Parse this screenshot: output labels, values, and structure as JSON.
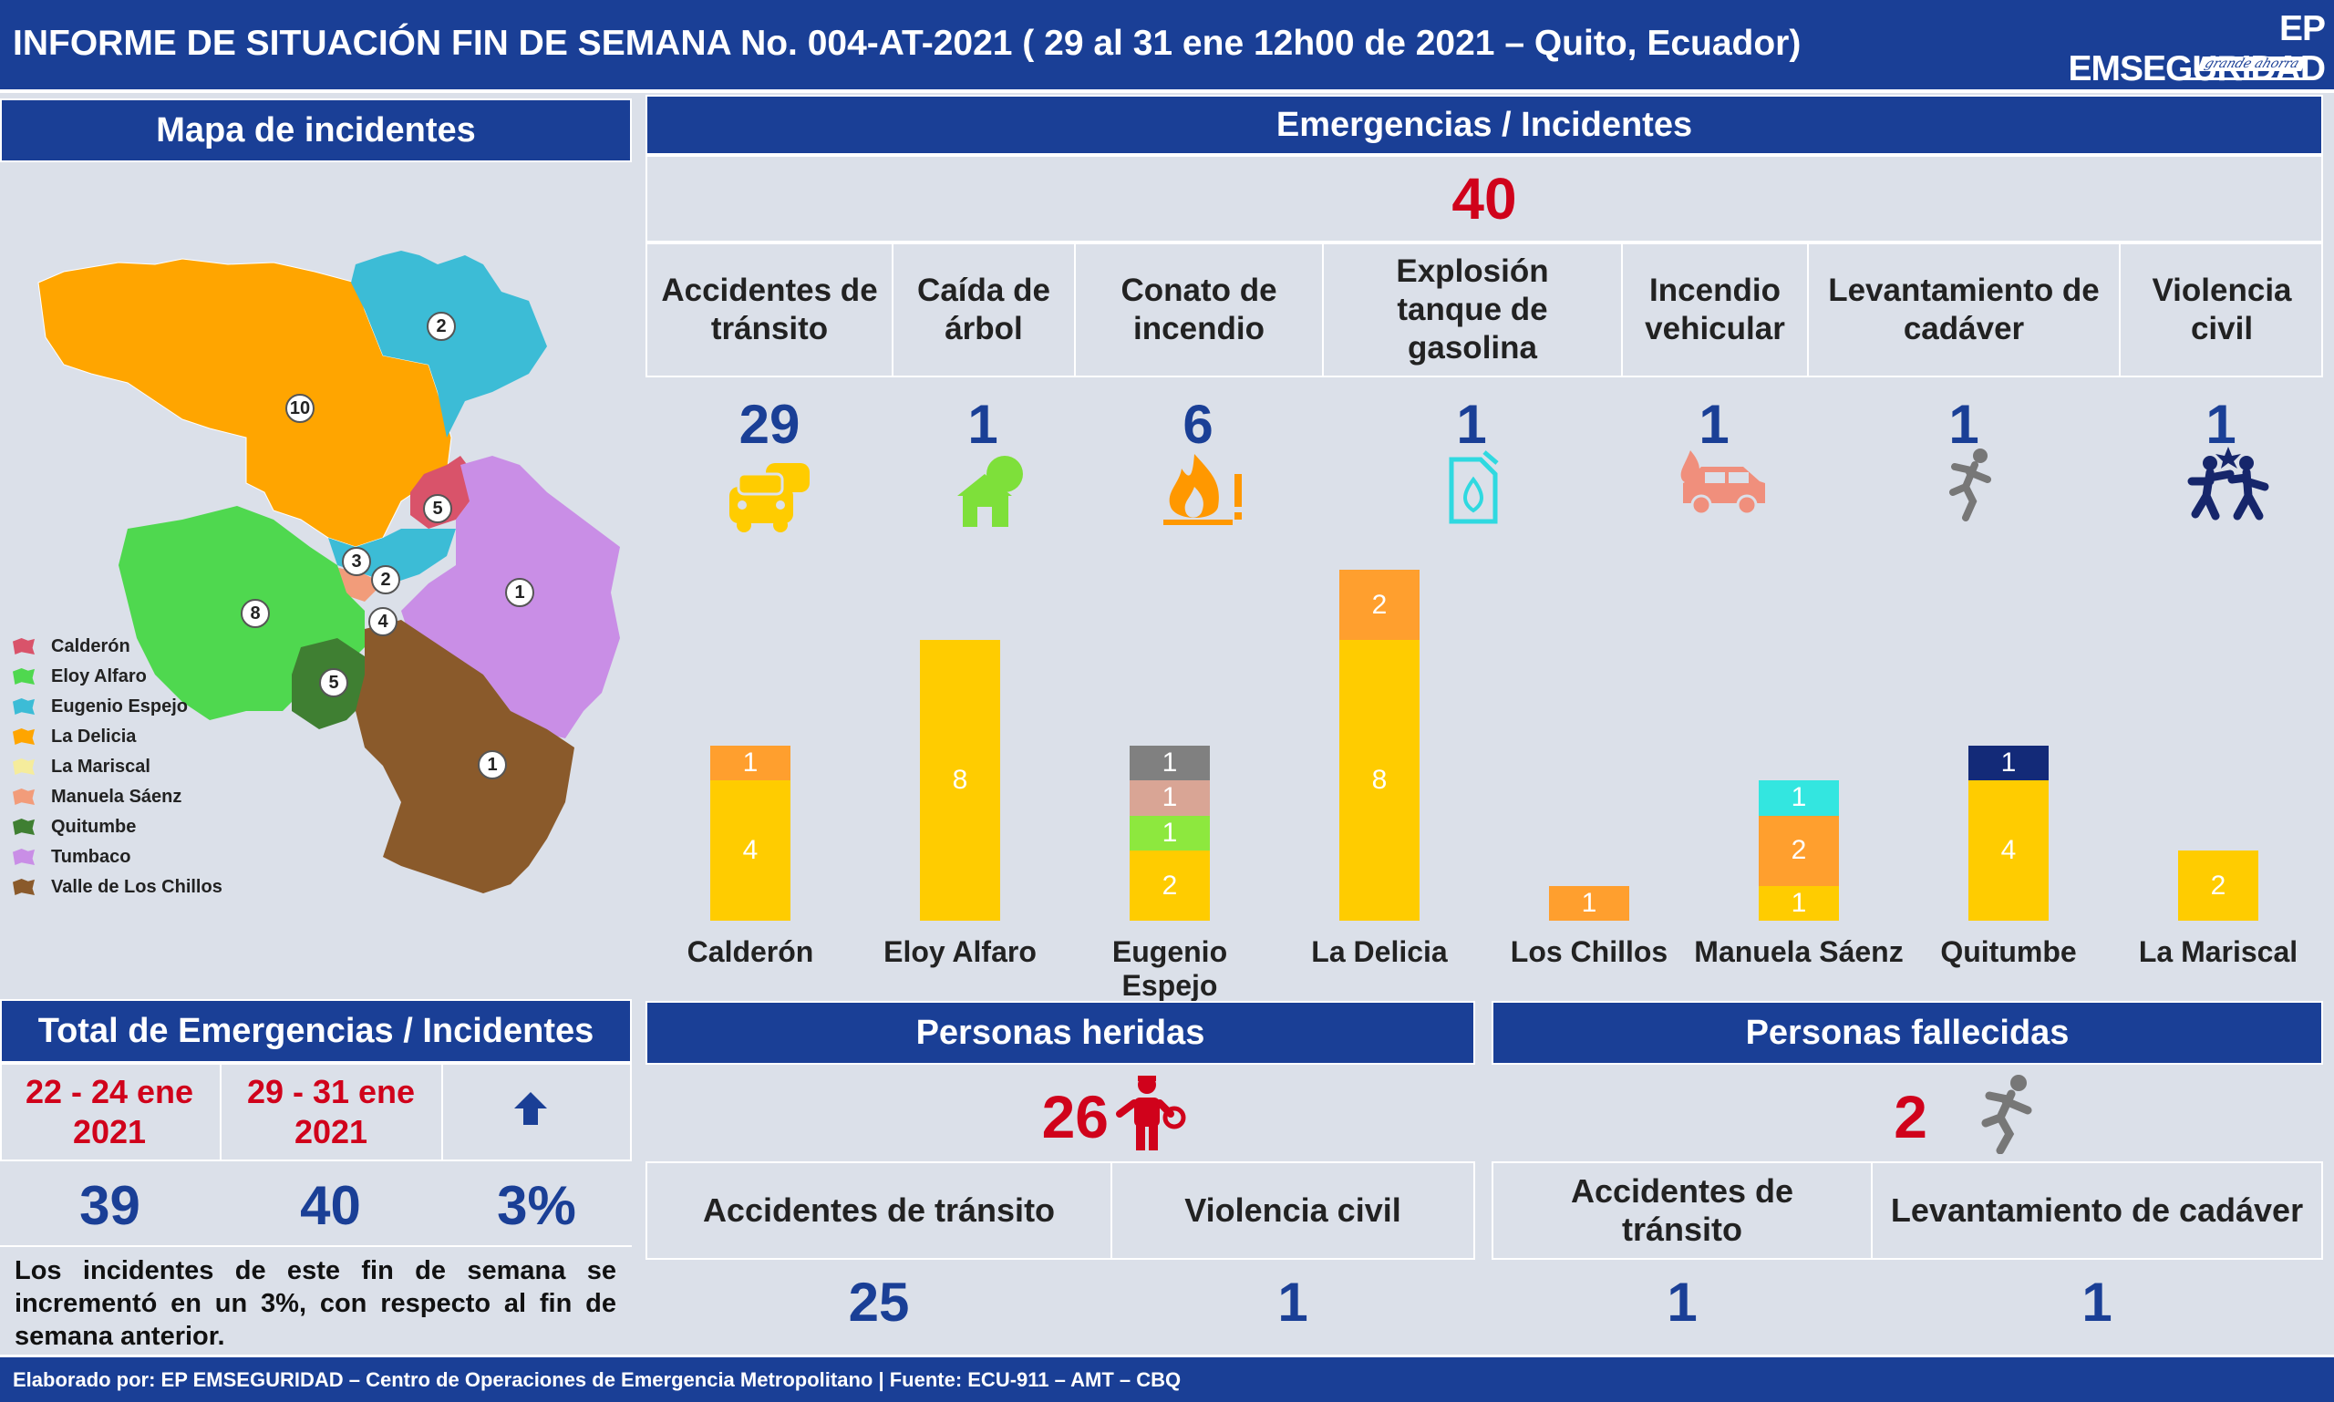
{
  "header": {
    "title": "INFORME DE SITUACIÓN FIN DE SEMANA No. 004-AT-2021 ( 29 al 31 ene 12h00 de 2021 – Quito, Ecuador)",
    "logo": "EP EMSEGURIDAD",
    "logo_signature": "grande ahorra"
  },
  "map_panel": {
    "title": "Mapa de incidentes",
    "badges": [
      "2",
      "10",
      "5",
      "3",
      "2",
      "1",
      "8",
      "4",
      "5",
      "1"
    ],
    "legend": [
      {
        "label": "Calderón",
        "color": "#d9536a"
      },
      {
        "label": "Eloy Alfaro",
        "color": "#4fd84f"
      },
      {
        "label": "Eugenio Espejo",
        "color": "#3cbcd6"
      },
      {
        "label": "La Delicia",
        "color": "#ffa500"
      },
      {
        "label": "La Mariscal",
        "color": "#f5ec9c"
      },
      {
        "label": "Manuela Sáenz",
        "color": "#f29c7a"
      },
      {
        "label": "Quitumbe",
        "color": "#3f7f32"
      },
      {
        "label": "Tumbaco",
        "color": "#c98ee6"
      },
      {
        "label": "Valle de Los Chillos",
        "color": "#8a5a2b"
      }
    ]
  },
  "emergencies": {
    "title": "Emergencias / Incidentes",
    "total": "40",
    "categories": [
      {
        "label": "Accidentes de tránsito",
        "count": "29",
        "icon": "car-crash-icon",
        "color": "#ffcc00"
      },
      {
        "label": "Caída de árbol",
        "count": "1",
        "icon": "fallen-tree-icon",
        "color": "#7ee03a"
      },
      {
        "label": "Conato de incendio",
        "count": "6",
        "icon": "fire-warning-icon",
        "color": "#ff9800"
      },
      {
        "label": "Explosión tanque de gasolina",
        "count": "1",
        "icon": "fuel-can-icon",
        "color": "#2fd9e0"
      },
      {
        "label": "Incendio vehicular",
        "count": "1",
        "icon": "car-fire-icon",
        "color": "#f08f7c"
      },
      {
        "label": "Levantamiento de cadáver",
        "count": "1",
        "icon": "falling-person-icon",
        "color": "#777777"
      },
      {
        "label": "Violencia civil",
        "count": "1",
        "icon": "fight-icon",
        "color": "#16266b"
      }
    ]
  },
  "chart_data": {
    "type": "bar",
    "stacked": true,
    "categories": [
      "Calderón",
      "Eloy Alfaro",
      "Eugenio Espejo",
      "La Delicia",
      "Los Chillos",
      "Manuela Sáenz",
      "Quitumbe",
      "La Mariscal"
    ],
    "series": [
      {
        "color": "#ffcc00",
        "values": [
          4,
          8,
          2,
          8,
          0,
          1,
          4,
          2
        ]
      },
      {
        "color": "#ff9f2e",
        "values": [
          1,
          0,
          0,
          2,
          1,
          2,
          0,
          0
        ]
      },
      {
        "color": "#8de83e",
        "values": [
          0,
          0,
          1,
          0,
          0,
          0,
          0,
          0
        ]
      },
      {
        "color": "#d9a595",
        "values": [
          0,
          0,
          1,
          0,
          0,
          0,
          0,
          0
        ]
      },
      {
        "color": "#808080",
        "values": [
          0,
          0,
          1,
          0,
          0,
          0,
          0,
          0
        ]
      },
      {
        "color": "#33e6e0",
        "values": [
          0,
          0,
          0,
          0,
          0,
          1,
          0,
          0
        ]
      },
      {
        "color": "#132a78",
        "values": [
          0,
          0,
          0,
          0,
          0,
          0,
          1,
          0
        ]
      }
    ],
    "ylim": [
      0,
      10
    ]
  },
  "totals": {
    "title": "Total de Emergencias / Incidentes",
    "prev_period": "22 - 24 ene 2021",
    "curr_period": "29 - 31 ene 2021",
    "prev_value": "39",
    "curr_value": "40",
    "change": "3%",
    "trend_icon": "arrow-up-icon",
    "note": "Los incidentes de este fin de semana se incrementó en un 3%, con respecto al fin de semana anterior."
  },
  "injured": {
    "title": "Personas heridas",
    "total": "26",
    "icon": "injured-person-icon",
    "items": [
      {
        "label": "Accidentes de tránsito",
        "value": "25"
      },
      {
        "label": "Violencia civil",
        "value": "1"
      }
    ]
  },
  "deceased": {
    "title": "Personas fallecidas",
    "total": "2",
    "icon": "falling-person-icon",
    "items": [
      {
        "label": "Accidentes de tránsito",
        "value": "1"
      },
      {
        "label": "Levantamiento de cadáver",
        "value": "1"
      }
    ]
  },
  "footer": {
    "text": "Elaborado por: EP EMSEGURIDAD – Centro de Operaciones de Emergencia Metropolitano | Fuente: ECU-911 – AMT – CBQ"
  }
}
